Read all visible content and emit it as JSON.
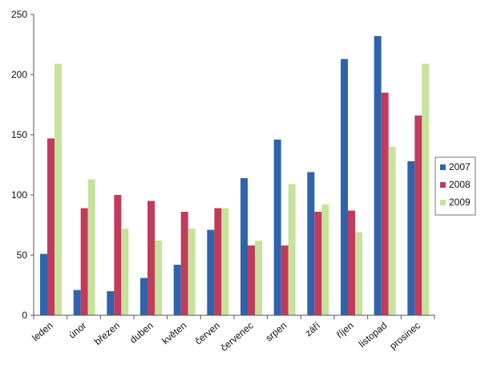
{
  "chart_data": {
    "type": "bar",
    "categories": [
      "leden",
      "únor",
      "březen",
      "duben",
      "květen",
      "červen",
      "červenec",
      "srpen",
      "září",
      "říjen",
      "listopad",
      "prosinec"
    ],
    "series": [
      {
        "name": "2007",
        "color": "#2f64ad",
        "values": [
          51,
          21,
          20,
          31,
          42,
          71,
          114,
          146,
          119,
          213,
          232,
          128
        ]
      },
      {
        "name": "2008",
        "color": "#c23b5c",
        "values": [
          147,
          89,
          100,
          95,
          86,
          89,
          58,
          58,
          86,
          87,
          185,
          166
        ]
      },
      {
        "name": "2009",
        "color": "#c5e39b",
        "values": [
          209,
          113,
          72,
          62,
          72,
          89,
          62,
          109,
          92,
          69,
          140,
          209
        ]
      }
    ],
    "ylim": [
      0,
      250
    ],
    "yticks": [
      0,
      50,
      100,
      150,
      200,
      250
    ],
    "legend_position": "right",
    "grid": false
  }
}
